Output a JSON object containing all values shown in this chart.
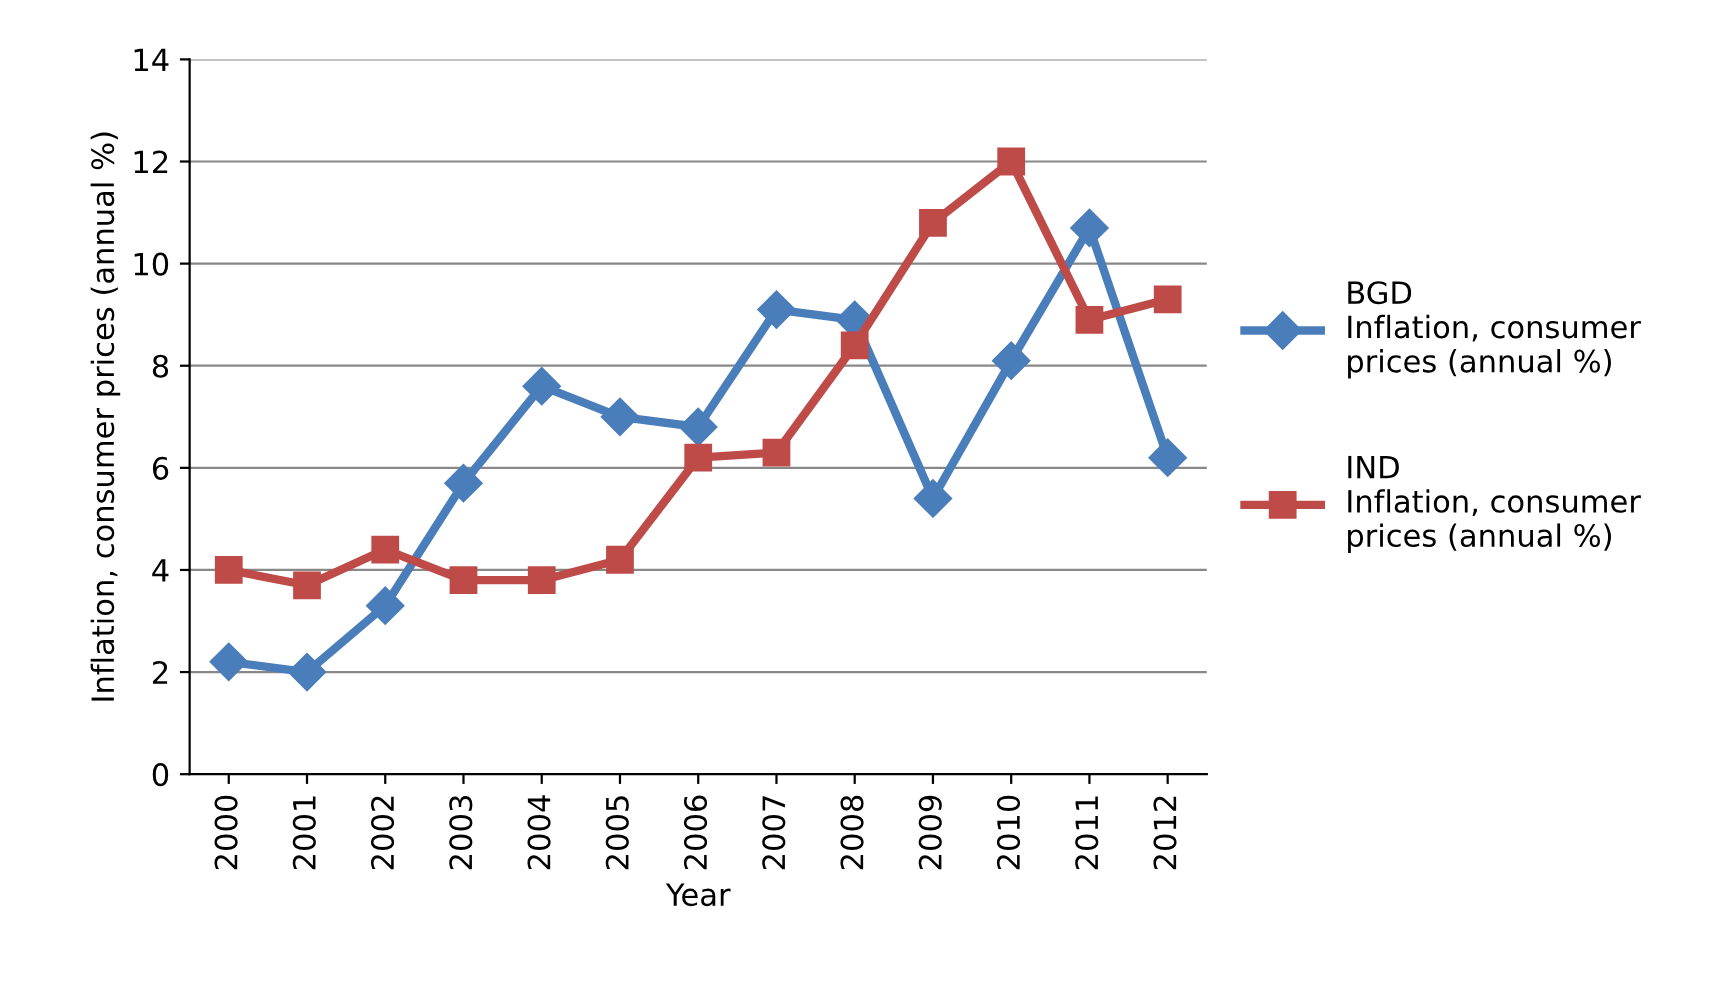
{
  "chart_data": {
    "type": "line",
    "xlabel": "Year",
    "ylabel": "Inflation, consumer prices (annual %)",
    "categories": [
      "2000",
      "2001",
      "2002",
      "2003",
      "2004",
      "2005",
      "2006",
      "2007",
      "2008",
      "2009",
      "2010",
      "2011",
      "2012"
    ],
    "series": [
      {
        "name": "BGD\nInflation, consumer\nprices (annual %)",
        "color": "#4a7ebb",
        "marker": "diamond",
        "values": [
          2.2,
          2.0,
          3.3,
          5.7,
          7.6,
          7.0,
          6.8,
          9.1,
          8.9,
          5.4,
          8.1,
          10.7,
          6.2
        ]
      },
      {
        "name": "IND\nInflation, consumer\nprices (annual %)",
        "color": "#be4b48",
        "marker": "square",
        "values": [
          4.0,
          3.7,
          4.4,
          3.8,
          3.8,
          4.2,
          6.2,
          6.3,
          8.4,
          10.8,
          12.0,
          8.9,
          9.3
        ]
      }
    ],
    "ylim": [
      0,
      14
    ],
    "yticks": [
      0,
      2,
      4,
      6,
      8,
      10,
      12,
      14
    ],
    "grid": "y",
    "legend": "right",
    "line_style": "solid"
  }
}
